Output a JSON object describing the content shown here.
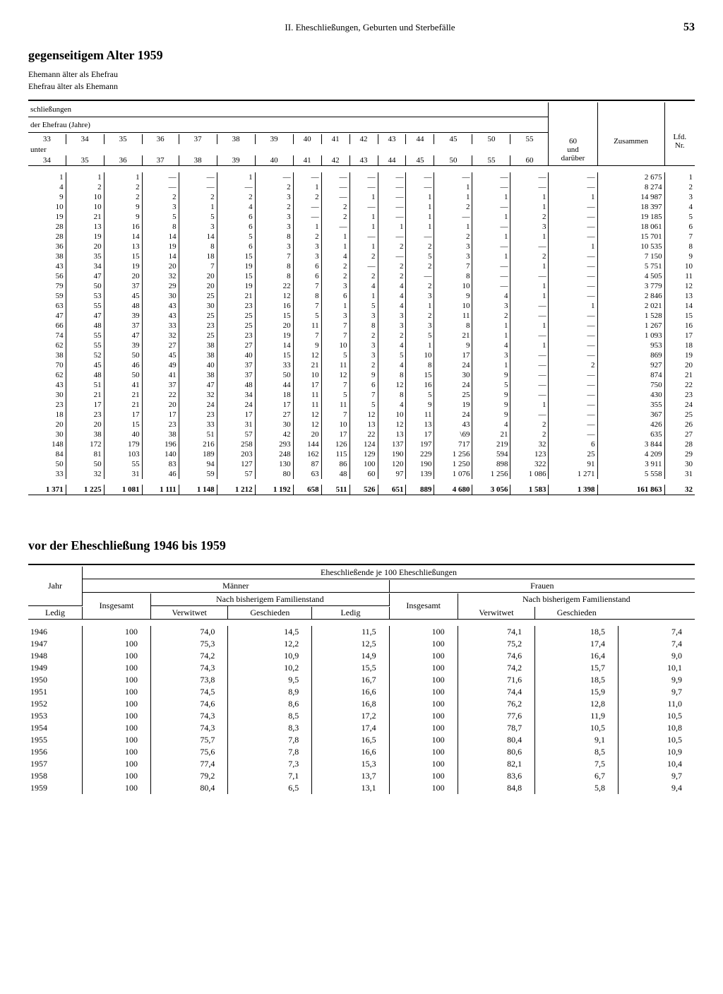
{
  "page": {
    "chapter": "II. Eheschließungen, Geburten und Sterbefälle",
    "number": "53"
  },
  "sectionA": {
    "title": "gegenseitigem Alter 1959",
    "sub1": "Ehemann älter als Ehefrau",
    "sub2": "Ehefrau älter als Ehemann",
    "h_schliessungen": "schließungen",
    "h_ehefrau": "der Ehefrau (Jahre)",
    "h_unter": "unter",
    "h_zusammen": "Zusammen",
    "h_lfd": "Lfd.\nNr.",
    "h_60": "60\nund\ndarüber",
    "top_ages": [
      "33",
      "34",
      "35",
      "36",
      "37",
      "38",
      "39",
      "40",
      "41",
      "42",
      "43",
      "44",
      "45",
      "50",
      "55"
    ],
    "bot_ages": [
      "34",
      "35",
      "36",
      "37",
      "38",
      "39",
      "40",
      "41",
      "42",
      "43",
      "44",
      "45",
      "50",
      "55",
      "60"
    ],
    "rows": [
      [
        "1",
        "1",
        "1",
        "—",
        "—",
        "1",
        "—",
        "—",
        "—",
        "—",
        "—",
        "—",
        "—",
        "—",
        "—",
        "—",
        "2 675",
        "1"
      ],
      [
        "4",
        "2",
        "2",
        "—",
        "—",
        "—",
        "2",
        "1",
        "—",
        "—",
        "—",
        "—",
        "1",
        "—",
        "—",
        "—",
        "8 274",
        "2"
      ],
      [
        "9",
        "10",
        "2",
        "2",
        "2",
        "2",
        "3",
        "2",
        "—",
        "1",
        "—",
        "1",
        "1",
        "1",
        "1",
        "1",
        "14 987",
        "3"
      ],
      [
        "10",
        "10",
        "9",
        "3",
        "1",
        "4",
        "2",
        "—",
        "2",
        "—",
        "—",
        "1",
        "2",
        "—",
        "1",
        "—",
        "18 397",
        "4"
      ],
      [
        "19",
        "21",
        "9",
        "5",
        "5",
        "6",
        "3",
        "—",
        "2",
        "1",
        "—",
        "1",
        "—",
        "1",
        "2",
        "—",
        "19 185",
        "5"
      ],
      [
        "28",
        "13",
        "16",
        "8",
        "3",
        "6",
        "3",
        "1",
        "—",
        "1",
        "1",
        "1",
        "1",
        "—",
        "3",
        "—",
        "18 061",
        "6"
      ],
      [
        "28",
        "19",
        "14",
        "14",
        "14",
        "5",
        "8",
        "2",
        "1",
        "—",
        "—",
        "—",
        "2",
        "1",
        "1",
        "—",
        "15 701",
        "7"
      ],
      [
        "36",
        "20",
        "13",
        "19",
        "8",
        "6",
        "3",
        "3",
        "1",
        "1",
        "2",
        "2",
        "3",
        "—",
        "—",
        "1",
        "10 535",
        "8"
      ],
      [
        "38",
        "35",
        "15",
        "14",
        "18",
        "15",
        "7",
        "3",
        "4",
        "2",
        "—",
        "5",
        "3",
        "1",
        "2",
        "—",
        "7 150",
        "9"
      ],
      [
        "43",
        "34",
        "19",
        "20",
        "7",
        "19",
        "8",
        "6",
        "2",
        "—",
        "2",
        "2",
        "7",
        "—",
        "1",
        "—",
        "5 751",
        "10"
      ],
      [
        "56",
        "47",
        "20",
        "32",
        "20",
        "15",
        "8",
        "6",
        "2",
        "2",
        "2",
        "—",
        "8",
        "—",
        "—",
        "—",
        "4 505",
        "11"
      ],
      [
        "79",
        "50",
        "37",
        "29",
        "20",
        "19",
        "22",
        "7",
        "3",
        "4",
        "4",
        "2",
        "10",
        "—",
        "1",
        "—",
        "3 779",
        "12"
      ],
      [
        "59",
        "53",
        "45",
        "30",
        "25",
        "21",
        "12",
        "8",
        "6",
        "1",
        "4",
        "3",
        "9",
        "4",
        "1",
        "—",
        "2 846",
        "13"
      ],
      [
        "63",
        "55",
        "48",
        "43",
        "30",
        "23",
        "16",
        "7",
        "1",
        "5",
        "4",
        "1",
        "10",
        "3",
        "—",
        "1",
        "2 021",
        "14"
      ],
      [
        "47",
        "47",
        "39",
        "43",
        "25",
        "25",
        "15",
        "5",
        "3",
        "3",
        "3",
        "2",
        "11",
        "2",
        "—",
        "—",
        "1 528",
        "15"
      ],
      [
        "66",
        "48",
        "37",
        "33",
        "23",
        "25",
        "20",
        "11",
        "7",
        "8",
        "3",
        "3",
        "8",
        "1",
        "1",
        "—",
        "1 267",
        "16"
      ],
      [
        "74",
        "55",
        "47",
        "32",
        "25",
        "23",
        "19",
        "7",
        "7",
        "2",
        "2",
        "5",
        "21",
        "1",
        "—",
        "—",
        "1 093",
        "17"
      ],
      [
        "62",
        "55",
        "39",
        "27",
        "38",
        "27",
        "14",
        "9",
        "10",
        "3",
        "4",
        "1",
        "9",
        "4",
        "1",
        "—",
        "953",
        "18"
      ],
      [
        "38",
        "52",
        "50",
        "45",
        "38",
        "40",
        "15",
        "12",
        "5",
        "3",
        "5",
        "10",
        "17",
        "3",
        "—",
        "—",
        "869",
        "19"
      ],
      [
        "70",
        "45",
        "46",
        "49",
        "40",
        "37",
        "33",
        "21",
        "11",
        "2",
        "4",
        "8",
        "24",
        "1",
        "—",
        "2",
        "927",
        "20"
      ],
      [
        "62",
        "48",
        "50",
        "41",
        "38",
        "37",
        "50",
        "10",
        "12",
        "9",
        "8",
        "15",
        "30",
        "9",
        "—",
        "—",
        "874",
        "21"
      ],
      [
        "43",
        "51",
        "41",
        "37",
        "47",
        "48",
        "44",
        "17",
        "7",
        "6",
        "12",
        "16",
        "24",
        "5",
        "—",
        "—",
        "750",
        "22"
      ],
      [
        "30",
        "21",
        "21",
        "22",
        "32",
        "34",
        "18",
        "11",
        "5",
        "7",
        "8",
        "5",
        "25",
        "9",
        "—",
        "—",
        "430",
        "23"
      ],
      [
        "23",
        "17",
        "21",
        "20",
        "24",
        "24",
        "17",
        "11",
        "11",
        "5",
        "4",
        "9",
        "19",
        "9",
        "1",
        "—",
        "355",
        "24"
      ],
      [
        "18",
        "23",
        "17",
        "17",
        "23",
        "17",
        "27",
        "12",
        "7",
        "12",
        "10",
        "11",
        "24",
        "9",
        "—",
        "—",
        "367",
        "25"
      ],
      [
        "20",
        "20",
        "15",
        "23",
        "33",
        "31",
        "30",
        "12",
        "10",
        "13",
        "12",
        "13",
        "43",
        "4",
        "2",
        "—",
        "426",
        "26"
      ],
      [
        "30",
        "38",
        "40",
        "38",
        "51",
        "57",
        "42",
        "20",
        "17",
        "22",
        "13",
        "17",
        "\\69",
        "21",
        "2",
        "—",
        "635",
        "27"
      ],
      [
        "148",
        "172",
        "179",
        "196",
        "216",
        "258",
        "293",
        "144",
        "126",
        "124",
        "137",
        "197",
        "717",
        "219",
        "32",
        "6",
        "3 844",
        "28"
      ],
      [
        "84",
        "81",
        "103",
        "140",
        "189",
        "203",
        "248",
        "162",
        "115",
        "129",
        "190",
        "229",
        "1 256",
        "594",
        "123",
        "25",
        "4 209",
        "29"
      ],
      [
        "50",
        "50",
        "55",
        "83",
        "94",
        "127",
        "130",
        "87",
        "86",
        "100",
        "120",
        "190",
        "1 250",
        "898",
        "322",
        "91",
        "3 911",
        "30"
      ],
      [
        "33",
        "32",
        "31",
        "46",
        "59",
        "57",
        "80",
        "63",
        "48",
        "60",
        "97",
        "139",
        "1 076",
        "1 256",
        "1 086",
        "1 271",
        "5 558",
        "31"
      ]
    ],
    "totals": [
      "1 371",
      "1 225",
      "1 081",
      "1 111",
      "1 148",
      "1 212",
      "1 192",
      "658",
      "511",
      "526",
      "651",
      "889",
      "4 680",
      "3 056",
      "1 583",
      "1 398",
      "161 863",
      "32"
    ]
  },
  "sectionB": {
    "title": "vor der Eheschließung 1946 bis 1959",
    "h_top": "Eheschließende je 100 Eheschließungen",
    "h_jahr": "Jahr",
    "h_manner": "Männer",
    "h_frauen": "Frauen",
    "h_insgesamt": "Insgesamt",
    "h_nach": "Nach bisherigem Familienstand",
    "h_ledig": "Ledig",
    "h_verwitwet": "Verwitwet",
    "h_geschieden": "Geschieden",
    "rows": [
      [
        "1946",
        "100",
        "74,0",
        "14,5",
        "11,5",
        "100",
        "74,1",
        "18,5",
        "7,4"
      ],
      [
        "1947",
        "100",
        "75,3",
        "12,2",
        "12,5",
        "100",
        "75,2",
        "17,4",
        "7,4"
      ],
      [
        "1948",
        "100",
        "74,2",
        "10,9",
        "14,9",
        "100",
        "74,6",
        "16,4",
        "9,0"
      ],
      [
        "1949",
        "100",
        "74,3",
        "10,2",
        "15,5",
        "100",
        "74,2",
        "15,7",
        "10,1"
      ],
      [
        "1950",
        "100",
        "73,8",
        "9,5",
        "16,7",
        "100",
        "71,6",
        "18,5",
        "9,9"
      ],
      [
        "1951",
        "100",
        "74,5",
        "8,9",
        "16,6",
        "100",
        "74,4",
        "15,9",
        "9,7"
      ],
      [
        "1952",
        "100",
        "74,6",
        "8,6",
        "16,8",
        "100",
        "76,2",
        "12,8",
        "11,0"
      ],
      [
        "1953",
        "100",
        "74,3",
        "8,5",
        "17,2",
        "100",
        "77,6",
        "11,9",
        "10,5"
      ],
      [
        "1954",
        "100",
        "74,3",
        "8,3",
        "17,4",
        "100",
        "78,7",
        "10,5",
        "10,8"
      ],
      [
        "1955",
        "100",
        "75,7",
        "7,8",
        "16,5",
        "100",
        "80,4",
        "9,1",
        "10,5"
      ],
      [
        "1956",
        "100",
        "75,6",
        "7,8",
        "16,6",
        "100",
        "80,6",
        "8,5",
        "10,9"
      ],
      [
        "1957",
        "100",
        "77,4",
        "7,3",
        "15,3",
        "100",
        "82,1",
        "7,5",
        "10,4"
      ],
      [
        "1958",
        "100",
        "79,2",
        "7,1",
        "13,7",
        "100",
        "83,6",
        "6,7",
        "9,7"
      ],
      [
        "1959",
        "100",
        "80,4",
        "6,5",
        "13,1",
        "100",
        "84,8",
        "5,8",
        "9,4"
      ]
    ]
  }
}
